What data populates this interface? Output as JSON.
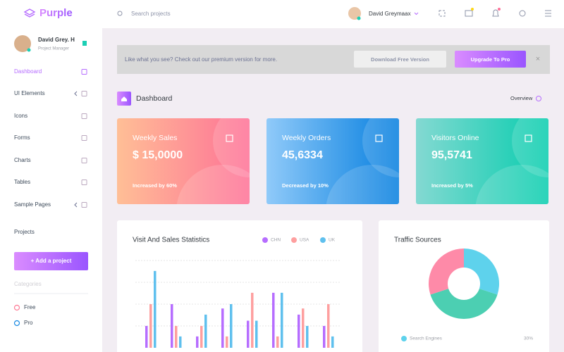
{
  "brand": "Purple",
  "search_placeholder": "Search projects",
  "user_name": "David Greymaax",
  "sidebar": {
    "profile": {
      "name": "David Grey. H",
      "role": "Project Manager"
    },
    "menu": [
      "Dashboard",
      "UI Elements",
      "Icons",
      "Forms",
      "Charts",
      "Tables",
      "Sample Pages"
    ],
    "projects_label": "Projects",
    "add_button": "+ Add a project",
    "categories_label": "Categories",
    "categories": [
      "Free",
      "Pro"
    ]
  },
  "banner": {
    "text": "Like what you see? Check out our premium version for more.",
    "download": "Download Free Version",
    "upgrade": "Upgrade To Pro",
    "close": "×"
  },
  "page_title": "Dashboard",
  "overview": "Overview",
  "cards": [
    {
      "title": "Weekly Sales",
      "value": "$ 15,0000",
      "note": "Increased by 60%"
    },
    {
      "title": "Weekly Orders",
      "value": "45,6334",
      "note": "Decreased by 10%"
    },
    {
      "title": "Visitors Online",
      "value": "95,5741",
      "note": "Increased by 5%"
    }
  ],
  "bar_chart": {
    "type": "bar",
    "title": "Visit And Sales Statistics",
    "categories": [
      null,
      null,
      null,
      null,
      null,
      null,
      null,
      null
    ],
    "series": [
      {
        "name": "CHN",
        "color": "#b66dff",
        "values": [
          25,
          50,
          13,
          45,
          31,
          63,
          38,
          25
        ]
      },
      {
        "name": "USA",
        "color": "#fe9f9f",
        "values": [
          50,
          25,
          25,
          13,
          63,
          13,
          45,
          50
        ]
      },
      {
        "name": "UK",
        "color": "#5fc0ee",
        "values": [
          88,
          13,
          38,
          50,
          31,
          63,
          25,
          13
        ]
      }
    ]
  },
  "donut_chart": {
    "type": "doughnut",
    "title": "Traffic Sources",
    "values": [
      30,
      40,
      30
    ],
    "colors": [
      "#5ed2ec",
      "#4ccfb2",
      "#fe8aa8"
    ],
    "legend": [
      {
        "label": "Search Engines",
        "value_label": "30%"
      }
    ]
  }
}
